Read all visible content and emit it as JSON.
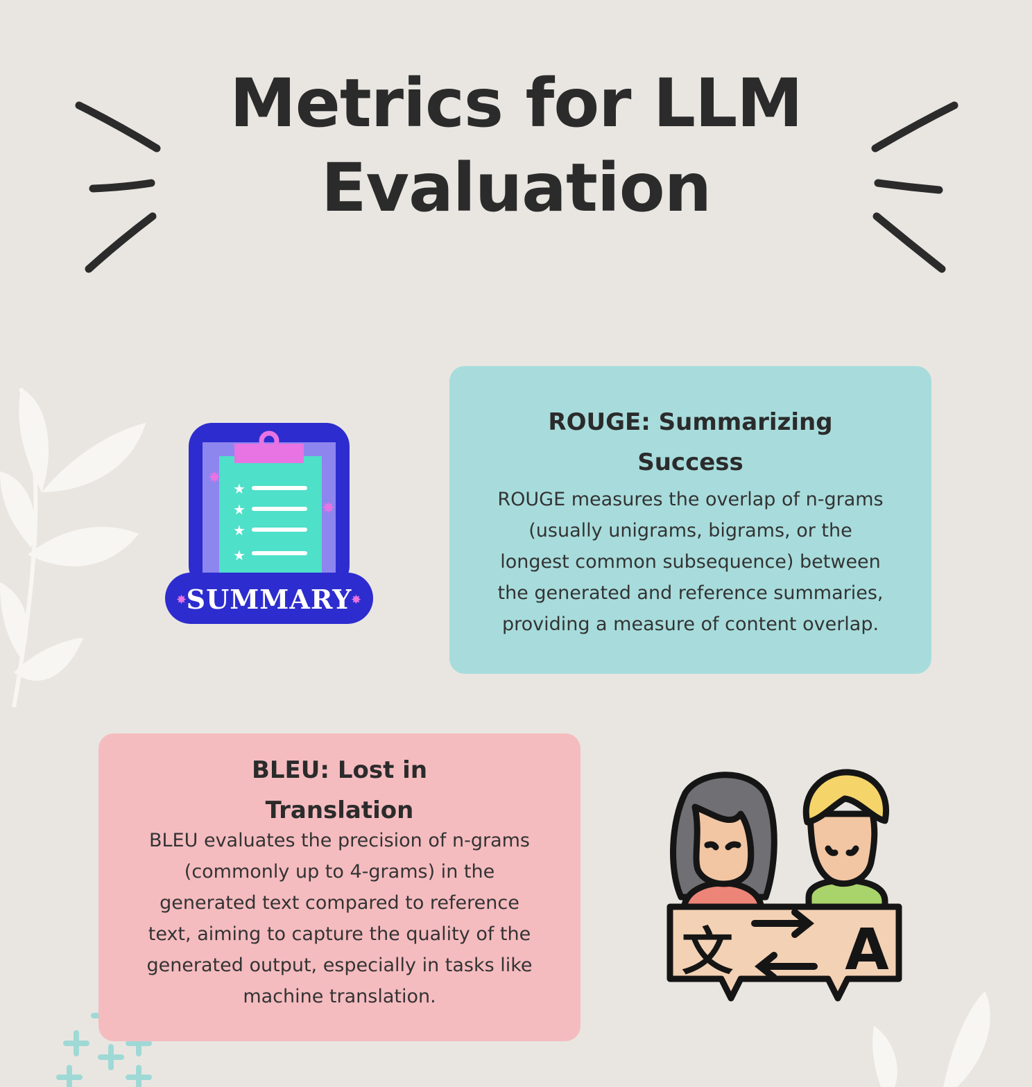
{
  "title": {
    "line1": "Metrics for LLM",
    "line2": "Evaluation"
  },
  "summary_icon": {
    "label": "SUMMARY"
  },
  "rouge_card": {
    "title": "ROUGE: Summarizing Success",
    "body": "ROUGE measures the overlap of n-grams (usually unigrams, bigrams, or the longest common subsequence) between the generated and reference summaries, providing a measure of content overlap."
  },
  "bleu_card": {
    "title": "BLEU: Lost in Translation",
    "body": "BLEU evaluates the precision of n-grams (commonly up to 4-grams) in the generated text compared to reference text, aiming to capture the quality of the generated output, especially in tasks like machine translation."
  },
  "translate_icon": {
    "source_glyph": "文",
    "target_glyph": "A"
  },
  "colors": {
    "background": "#e9e6e1",
    "rouge_card": "#a8dcdc",
    "bleu_card": "#f5bcc0",
    "summary_badge": "#2d2ccf",
    "clipboard_board": "#4ee0c8",
    "clipboard_clip": "#e873e3"
  }
}
